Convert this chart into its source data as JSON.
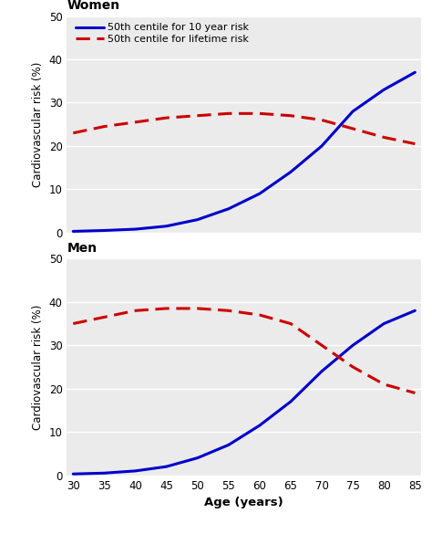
{
  "ages": [
    30,
    35,
    40,
    45,
    50,
    55,
    60,
    65,
    70,
    75,
    80,
    85
  ],
  "women_10yr": [
    0.3,
    0.5,
    0.8,
    1.5,
    3.0,
    5.5,
    9.0,
    14.0,
    20.0,
    28.0,
    33.0,
    37.0
  ],
  "women_lifetime": [
    23.0,
    24.5,
    25.5,
    26.5,
    27.0,
    27.5,
    27.5,
    27.0,
    26.0,
    24.0,
    22.0,
    20.5
  ],
  "men_10yr": [
    0.3,
    0.5,
    1.0,
    2.0,
    4.0,
    7.0,
    11.5,
    17.0,
    24.0,
    30.0,
    35.0,
    38.0
  ],
  "men_lifetime": [
    35.0,
    36.5,
    38.0,
    38.5,
    38.5,
    38.0,
    37.0,
    35.0,
    30.0,
    25.0,
    21.0,
    19.0
  ],
  "color_10yr": "#0000CC",
  "color_lifetime": "#CC0000",
  "title_women": "Women",
  "title_men": "Men",
  "xlabel": "Age (years)",
  "ylabel": "Cardiovascular risk (%)",
  "legend_10yr": "50th centile for 10 year risk",
  "legend_lifetime": "50th centile for lifetime risk",
  "ylim": [
    0,
    50
  ],
  "yticks": [
    0,
    10,
    20,
    30,
    40,
    50
  ],
  "xticks": [
    30,
    35,
    40,
    45,
    50,
    55,
    60,
    65,
    70,
    75,
    80,
    85
  ],
  "bg_color": "#EBEBEB",
  "fig_bg": "#FFFFFF",
  "linewidth_solid": 2.2,
  "linewidth_dash": 2.2
}
